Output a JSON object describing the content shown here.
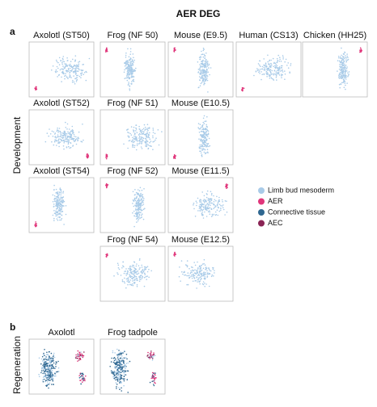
{
  "title": "AER DEG",
  "development": {
    "label": "a",
    "row_label": "Development",
    "rows": [
      [
        "Axolotl (ST50)",
        "Frog (NF 50)",
        "Mouse (E9.5)",
        "Human (CS13)",
        "Chicken (HH25)"
      ],
      [
        "Axolotl (ST52)",
        "Frog (NF 51)",
        "Mouse (E10.5)"
      ],
      [
        "Axolotl (ST54)",
        "Frog (NF 52)",
        "Mouse (E11.5)"
      ],
      [
        "Frog (NF 54)",
        "Mouse (E12.5)"
      ]
    ]
  },
  "regeneration": {
    "label": "b",
    "row_label": "Regeneration",
    "panels": [
      "Axolotl",
      "Frog tadpole"
    ]
  },
  "legend": [
    {
      "name": "Limb bud mesoderm",
      "color": "#a9cbe8"
    },
    {
      "name": "AER",
      "color": "#e0357a"
    },
    {
      "name": "Connective tissue",
      "color": "#2f6790"
    },
    {
      "name": "AEC",
      "color": "#8a2455"
    }
  ]
}
